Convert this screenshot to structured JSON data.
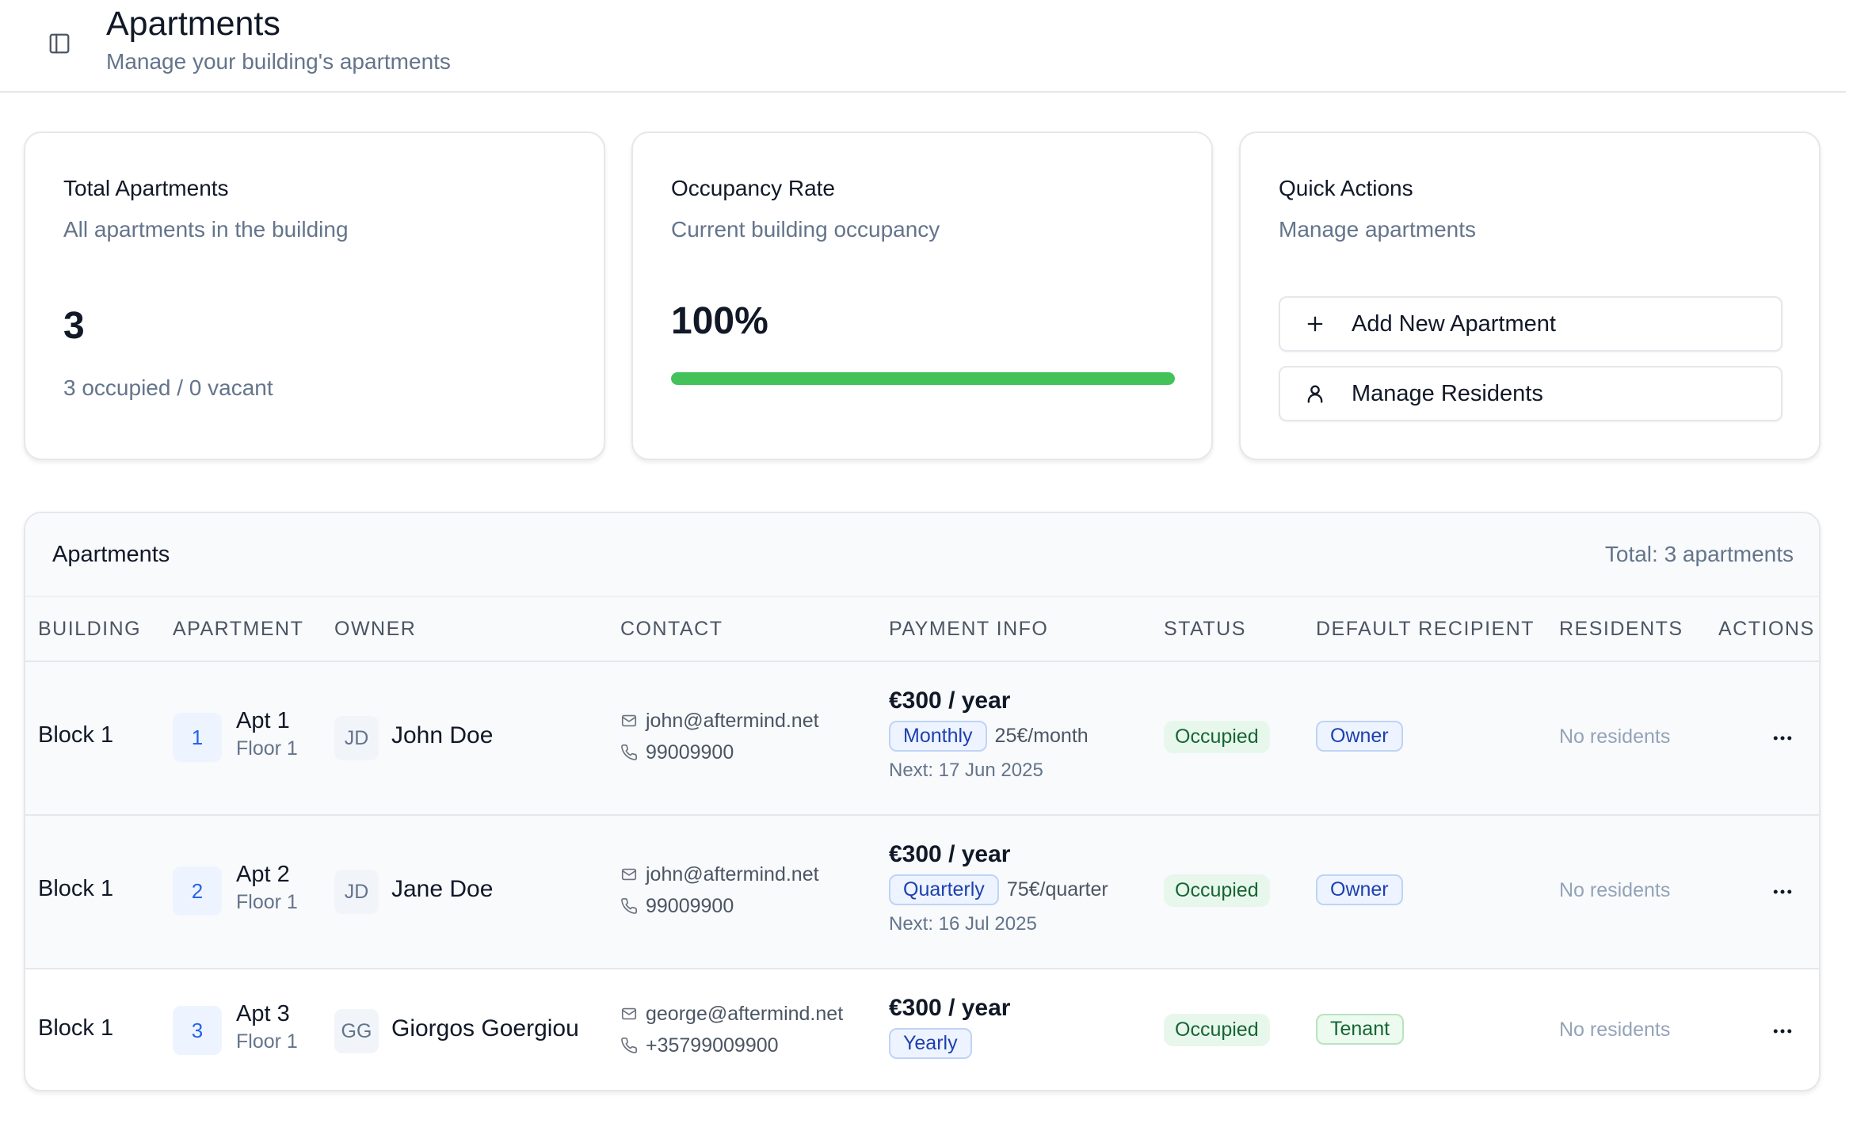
{
  "header": {
    "title": "Apartments",
    "subtitle": "Manage your building's apartments",
    "sidebar_toggle_icon": "sidebar-panel-icon"
  },
  "cards": {
    "total": {
      "title": "Total Apartments",
      "description": "All apartments in the building",
      "value": "3",
      "sub": "3 occupied / 0 vacant"
    },
    "occupancy": {
      "title": "Occupancy Rate",
      "description": "Current building occupancy",
      "value": "100%",
      "progress": 1.0,
      "bar_color": "#43c25a"
    },
    "quick_actions": {
      "title": "Quick Actions",
      "description": "Manage apartments",
      "buttons": [
        {
          "label": "Add New Apartment",
          "icon": "plus-icon"
        },
        {
          "label": "Manage Residents",
          "icon": "user-icon"
        }
      ]
    }
  },
  "table": {
    "title": "Apartments",
    "total": "Total: 3 apartments",
    "columns": [
      "BUILDING",
      "APARTMENT",
      "OWNER",
      "CONTACT",
      "PAYMENT INFO",
      "STATUS",
      "DEFAULT RECIPIENT",
      "RESIDENTS",
      "ACTIONS"
    ],
    "rows": [
      {
        "building": "Block 1",
        "apt_number": "1",
        "apt_name": "Apt 1",
        "floor": "Floor 1",
        "owner_initials": "JD",
        "owner": "John Doe",
        "email": "john@aftermind.net",
        "phone": "99009900",
        "price": "€300 / year",
        "frequency": "Monthly",
        "freq_amount": "25€/month",
        "next": "Next: 17 Jun 2025",
        "status": "Occupied",
        "recipient": "Owner",
        "residents": "No residents"
      },
      {
        "building": "Block 1",
        "apt_number": "2",
        "apt_name": "Apt 2",
        "floor": "Floor 1",
        "owner_initials": "JD",
        "owner": "Jane Doe",
        "email": "john@aftermind.net",
        "phone": "99009900",
        "price": "€300 / year",
        "frequency": "Quarterly",
        "freq_amount": "75€/quarter",
        "next": "Next: 16 Jul 2025",
        "status": "Occupied",
        "recipient": "Owner",
        "residents": "No residents"
      },
      {
        "building": "Block 1",
        "apt_number": "3",
        "apt_name": "Apt 3",
        "floor": "Floor 1",
        "owner_initials": "GG",
        "owner": "Giorgos Goergiou",
        "email": "george@aftermind.net",
        "phone": "+35799009900",
        "price": "€300 / year",
        "frequency": "Yearly",
        "freq_amount": "",
        "next": "",
        "status": "Occupied",
        "recipient": "Tenant",
        "residents": "No residents"
      }
    ]
  },
  "colors": {
    "accent": "#2563eb",
    "status_green": "#166534",
    "progress": "#43c25a"
  }
}
